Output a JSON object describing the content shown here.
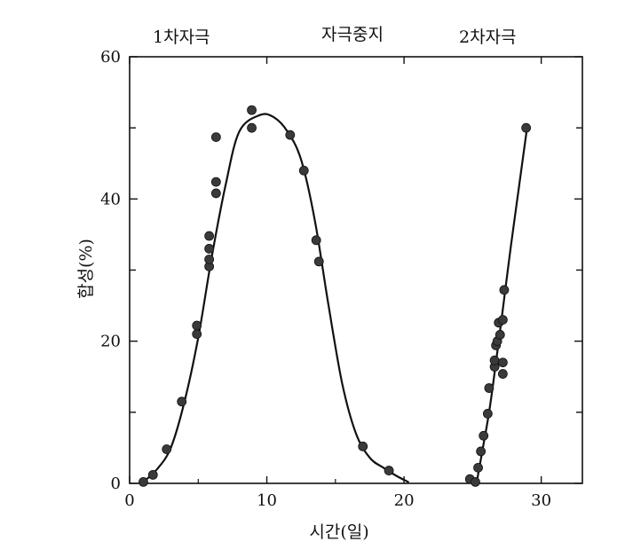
{
  "chart_data": {
    "type": "scatter",
    "xlabel": "시간(일)",
    "ylabel": "합성(%)",
    "xlim": [
      0,
      33
    ],
    "ylim": [
      0,
      60
    ],
    "xticks": [
      0,
      10,
      20,
      30
    ],
    "yticks": [
      0,
      20,
      40,
      60
    ],
    "annotations": [
      "1차자극",
      "자극중지",
      "2차자극"
    ],
    "grid": false,
    "series": [
      {
        "points": [
          [
            1,
            0.2
          ],
          [
            1.7,
            1.2
          ],
          [
            2.7,
            4.8
          ],
          [
            3.8,
            11.5
          ],
          [
            4.9,
            21
          ],
          [
            4.9,
            22.2
          ],
          [
            5.8,
            30.5
          ],
          [
            5.8,
            31.5
          ],
          [
            5.8,
            33
          ],
          [
            5.8,
            34.8
          ],
          [
            6.3,
            40.8
          ],
          [
            6.3,
            42.4
          ],
          [
            6.3,
            48.7
          ],
          [
            8.9,
            50
          ],
          [
            8.9,
            52.5
          ],
          [
            11.7,
            49
          ],
          [
            12.7,
            44
          ],
          [
            13.6,
            34.2
          ],
          [
            13.8,
            31.2
          ],
          [
            17.0,
            5.2
          ],
          [
            18.9,
            1.8
          ]
        ],
        "curve": [
          [
            1,
            0.2
          ],
          [
            2,
            2
          ],
          [
            3,
            5
          ],
          [
            4,
            11.5
          ],
          [
            5,
            20.5
          ],
          [
            6,
            32
          ],
          [
            7,
            42
          ],
          [
            8,
            49.5
          ],
          [
            9.5,
            51.8
          ],
          [
            10.5,
            51.5
          ],
          [
            11.5,
            49.5
          ],
          [
            12.5,
            45.5
          ],
          [
            13.5,
            37
          ],
          [
            14.5,
            25
          ],
          [
            15.5,
            14
          ],
          [
            16.5,
            7
          ],
          [
            17.5,
            3.6
          ],
          [
            18.5,
            2.2
          ],
          [
            19.5,
            1
          ],
          [
            20.3,
            0.2
          ]
        ]
      },
      {
        "points": [
          [
            24.8,
            0.6
          ],
          [
            25.2,
            0.2
          ],
          [
            25.4,
            2.2
          ],
          [
            25.6,
            4.5
          ],
          [
            25.8,
            6.7
          ],
          [
            26.1,
            9.8
          ],
          [
            26.2,
            13.4
          ],
          [
            26.6,
            16.4
          ],
          [
            26.6,
            17.3
          ],
          [
            26.7,
            19.4
          ],
          [
            26.8,
            20
          ],
          [
            27.0,
            20.9
          ],
          [
            26.9,
            22.6
          ],
          [
            27.2,
            23
          ],
          [
            27.2,
            15.4
          ],
          [
            27.2,
            17
          ],
          [
            27.3,
            27.2
          ],
          [
            28.9,
            50
          ]
        ],
        "curve": [
          [
            25.3,
            0.2
          ],
          [
            25.7,
            4.5
          ],
          [
            26.2,
            10
          ],
          [
            26.7,
            17
          ],
          [
            27.2,
            24.5
          ],
          [
            27.8,
            33.5
          ],
          [
            28.4,
            42
          ],
          [
            29,
            50.5
          ]
        ]
      }
    ]
  }
}
